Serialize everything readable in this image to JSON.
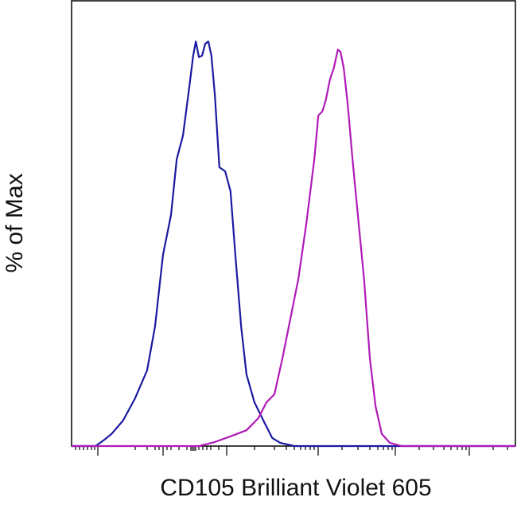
{
  "chart_data": {
    "type": "line",
    "y_label": "% of Max",
    "x_label": "CD105 Brilliant Violet 605",
    "xlim": [
      0,
      100
    ],
    "ylim": [
      0,
      100
    ],
    "series": [
      {
        "color": "#1a1aa0",
        "x": [
          0,
          5.4,
          7.2,
          9.0,
          11.6,
          14.3,
          17.0,
          18.8,
          20.6,
          22.4,
          23.7,
          25.1,
          26.5,
          27.4,
          28.0,
          28.7,
          29.4,
          30.1,
          30.8,
          31.5,
          32.3,
          33.3,
          34.6,
          35.8,
          36.9,
          38.2,
          39.4,
          41.2,
          43.4,
          45.2,
          47.0,
          50.2,
          100
        ],
        "values": [
          0,
          0,
          1.4,
          3.0,
          6.3,
          11.8,
          18.7,
          29.5,
          47.2,
          57.1,
          70.9,
          76.8,
          88.6,
          96.5,
          100,
          96.1,
          96.5,
          99.4,
          100,
          96.5,
          86.6,
          68.9,
          67.9,
          63.0,
          47.2,
          29.5,
          17.7,
          10.8,
          5.9,
          2.0,
          0.8,
          0,
          0
        ]
      },
      {
        "color": "#b01ab8",
        "x": [
          0,
          28.7,
          32.3,
          35.8,
          39.4,
          42.1,
          43.9,
          45.7,
          47.5,
          49.3,
          51.1,
          52.9,
          54.7,
          55.6,
          56.5,
          57.3,
          58.2,
          59.1,
          60.0,
          60.6,
          61.3,
          62.2,
          63.3,
          64.5,
          65.9,
          67.2,
          68.5,
          69.9,
          71.7,
          74.4,
          100
        ],
        "values": [
          0,
          0,
          1.0,
          2.4,
          3.9,
          6.9,
          10.8,
          12.8,
          21.7,
          31.5,
          41.3,
          55.1,
          70.9,
          81.7,
          82.7,
          85.6,
          90.6,
          93.5,
          98.0,
          97.4,
          93.5,
          84.6,
          70.9,
          57.1,
          41.3,
          21.7,
          9.8,
          3.0,
          0.8,
          0,
          0
        ]
      }
    ]
  }
}
